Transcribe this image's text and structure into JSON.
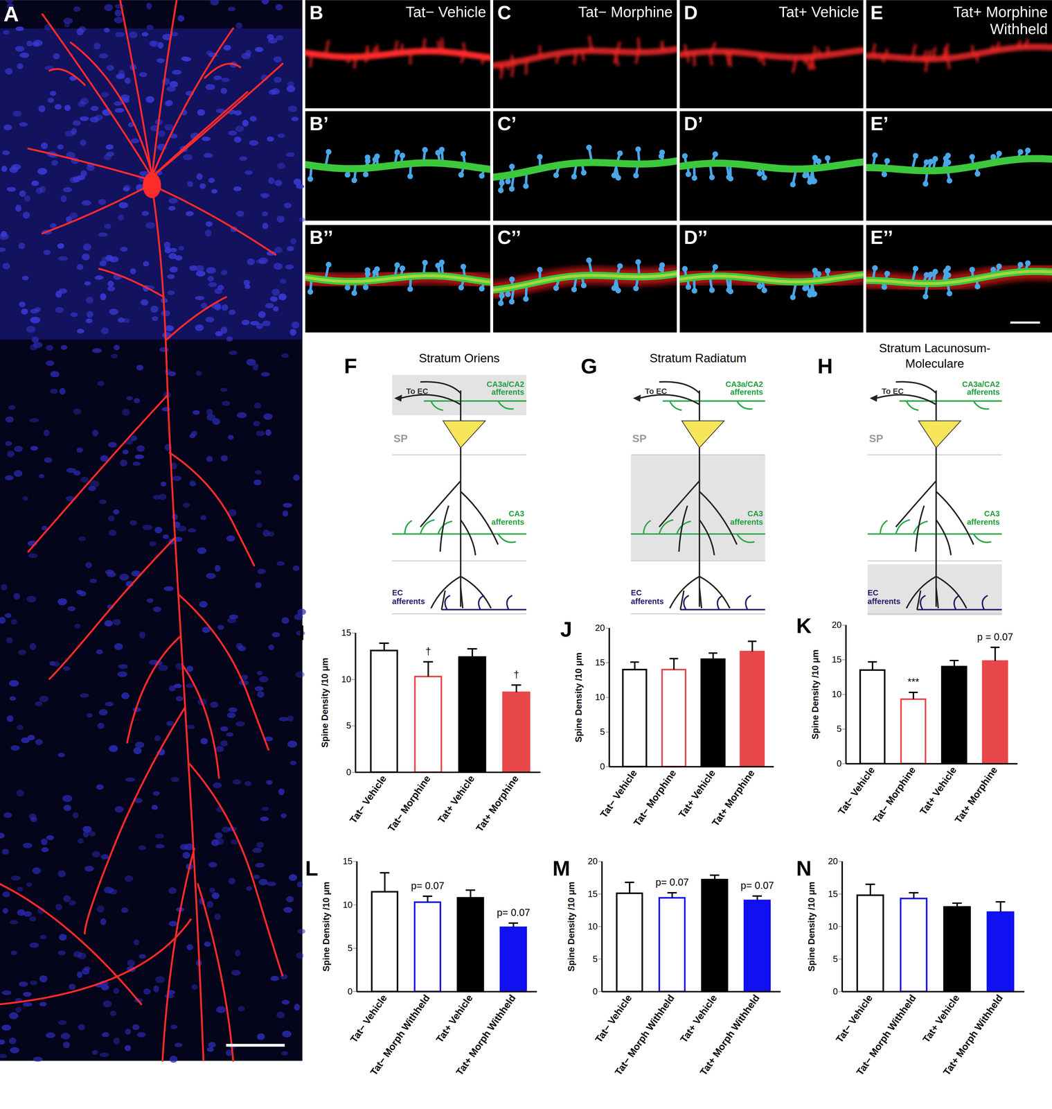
{
  "panels": {
    "A": {
      "label": "A"
    },
    "strips": [
      {
        "labels": [
          "B",
          "B’",
          "B’’"
        ],
        "title": [
          "Tat− Vehicle"
        ]
      },
      {
        "labels": [
          "C",
          "C’",
          "C’’"
        ],
        "title": [
          "Tat− Morphine"
        ]
      },
      {
        "labels": [
          "D",
          "D’",
          "D’’"
        ],
        "title": [
          "Tat+ Vehicle"
        ]
      },
      {
        "labels": [
          "E",
          "E’",
          "E’’"
        ],
        "title": [
          "Tat+ Morphine",
          "Withheld"
        ]
      }
    ]
  },
  "diagrams": [
    {
      "label": "F",
      "title": [
        "Stratum Oriens"
      ],
      "highlight": "oriens"
    },
    {
      "label": "G",
      "title": [
        "Stratum Radiatum"
      ],
      "highlight": "radiatum"
    },
    {
      "label": "H",
      "title": [
        "Stratum Lacunosum-",
        "Moleculare"
      ],
      "highlight": "lacunosum"
    }
  ],
  "diagram_labels": {
    "to_ec": "To EC",
    "upper_afferents": [
      "CA3a/CA2",
      "afferents"
    ],
    "sp": "SP",
    "ca3_afferents": [
      "CA3",
      "afferents"
    ],
    "ec_afferents": [
      "EC",
      "afferents"
    ]
  },
  "chart_data": [
    {
      "type": "bar",
      "panel": "I",
      "categories": [
        "Tat− Vehicle",
        "Tat− Morphine",
        "Tat+ Vehicle",
        "Tat+ Morphine"
      ],
      "values": [
        13.1,
        10.3,
        12.4,
        8.6
      ],
      "errors": [
        0.8,
        1.6,
        0.9,
        0.8
      ],
      "colors": [
        "#000000",
        "#e8474a",
        "#000000",
        "#e8474a"
      ],
      "ylabel": "Spine Density /10 μm",
      "ylim": [
        0,
        15
      ],
      "yticks": [
        0,
        5,
        10,
        15
      ],
      "annotations": [
        {
          "category": "Tat− Morphine",
          "text": "†"
        },
        {
          "category": "Tat+ Morphine",
          "text": "†"
        }
      ]
    },
    {
      "type": "bar",
      "panel": "J",
      "categories": [
        "Tat− Vehicle",
        "Tat− Morphine",
        "Tat+ Vehicle",
        "Tat+ Morphine"
      ],
      "values": [
        14.0,
        14.0,
        15.5,
        16.6
      ],
      "errors": [
        1.1,
        1.6,
        0.9,
        1.5
      ],
      "colors": [
        "#000000",
        "#e8474a",
        "#000000",
        "#e8474a"
      ],
      "ylabel": "Spine Density /10 μm",
      "ylim": [
        0,
        20
      ],
      "yticks": [
        0,
        5,
        10,
        15,
        20
      ],
      "annotations": []
    },
    {
      "type": "bar",
      "panel": "K",
      "categories": [
        "Tat− Vehicle",
        "Tat− Morphine",
        "Tat+ Vehicle",
        "Tat+ Morphine"
      ],
      "values": [
        13.5,
        9.3,
        14.0,
        14.8
      ],
      "errors": [
        1.2,
        1.0,
        0.9,
        2.0
      ],
      "colors": [
        "#000000",
        "#e8474a",
        "#000000",
        "#e8474a"
      ],
      "ylabel": "Spine Density /10 μm",
      "ylim": [
        0,
        20
      ],
      "yticks": [
        0,
        5,
        10,
        15,
        20
      ],
      "annotations": [
        {
          "category": "Tat− Morphine",
          "text": "***"
        },
        {
          "category": "Tat+ Morphine",
          "text": "p = 0.07"
        }
      ]
    },
    {
      "type": "bar",
      "panel": "L",
      "categories": [
        "Tat− Vehicle",
        "Tat− Morph Withheld",
        "Tat+ Vehicle",
        "Tat+ Morph Withheld"
      ],
      "values": [
        11.5,
        10.3,
        10.8,
        7.4
      ],
      "errors": [
        2.2,
        0.7,
        0.9,
        0.5
      ],
      "colors": [
        "#000000",
        "#1010f0",
        "#000000",
        "#1010f0"
      ],
      "ylabel": "Spine Density /10 μm",
      "ylim": [
        0,
        15
      ],
      "yticks": [
        0,
        5,
        10,
        15
      ],
      "annotations": [
        {
          "category": "Tat− Morph Withheld",
          "text": "p= 0.07"
        },
        {
          "category": "Tat+ Morph Withheld",
          "text": "p= 0.07"
        }
      ]
    },
    {
      "type": "bar",
      "panel": "M",
      "categories": [
        "Tat− Vehicle",
        "Tat− Morph Withheld",
        "Tat+ Vehicle",
        "Tat+ Morph Withheld"
      ],
      "values": [
        15.1,
        14.4,
        17.2,
        14.0
      ],
      "errors": [
        1.7,
        0.8,
        0.7,
        0.7
      ],
      "colors": [
        "#000000",
        "#1010f0",
        "#000000",
        "#1010f0"
      ],
      "ylabel": "Spine Density /10 μm",
      "ylim": [
        0,
        20
      ],
      "yticks": [
        0,
        5,
        10,
        15,
        20
      ],
      "annotations": [
        {
          "category": "Tat− Morph Withheld",
          "text": "p= 0.07"
        },
        {
          "category": "Tat+ Morph Withheld",
          "text": "p= 0.07"
        }
      ]
    },
    {
      "type": "bar",
      "panel": "N",
      "categories": [
        "Tat− Vehicle",
        "Tat− Morph Withheld",
        "Tat+ Vehicle",
        "Tat+ Morph Withheld"
      ],
      "values": [
        14.8,
        14.3,
        13.0,
        12.2
      ],
      "errors": [
        1.7,
        0.9,
        0.6,
        1.6
      ],
      "colors": [
        "#000000",
        "#1010f0",
        "#000000",
        "#1010f0"
      ],
      "ylabel": "Spine Density /10 μm",
      "ylim": [
        0,
        20
      ],
      "yticks": [
        0,
        5,
        10,
        15,
        20
      ],
      "annotations": []
    }
  ]
}
